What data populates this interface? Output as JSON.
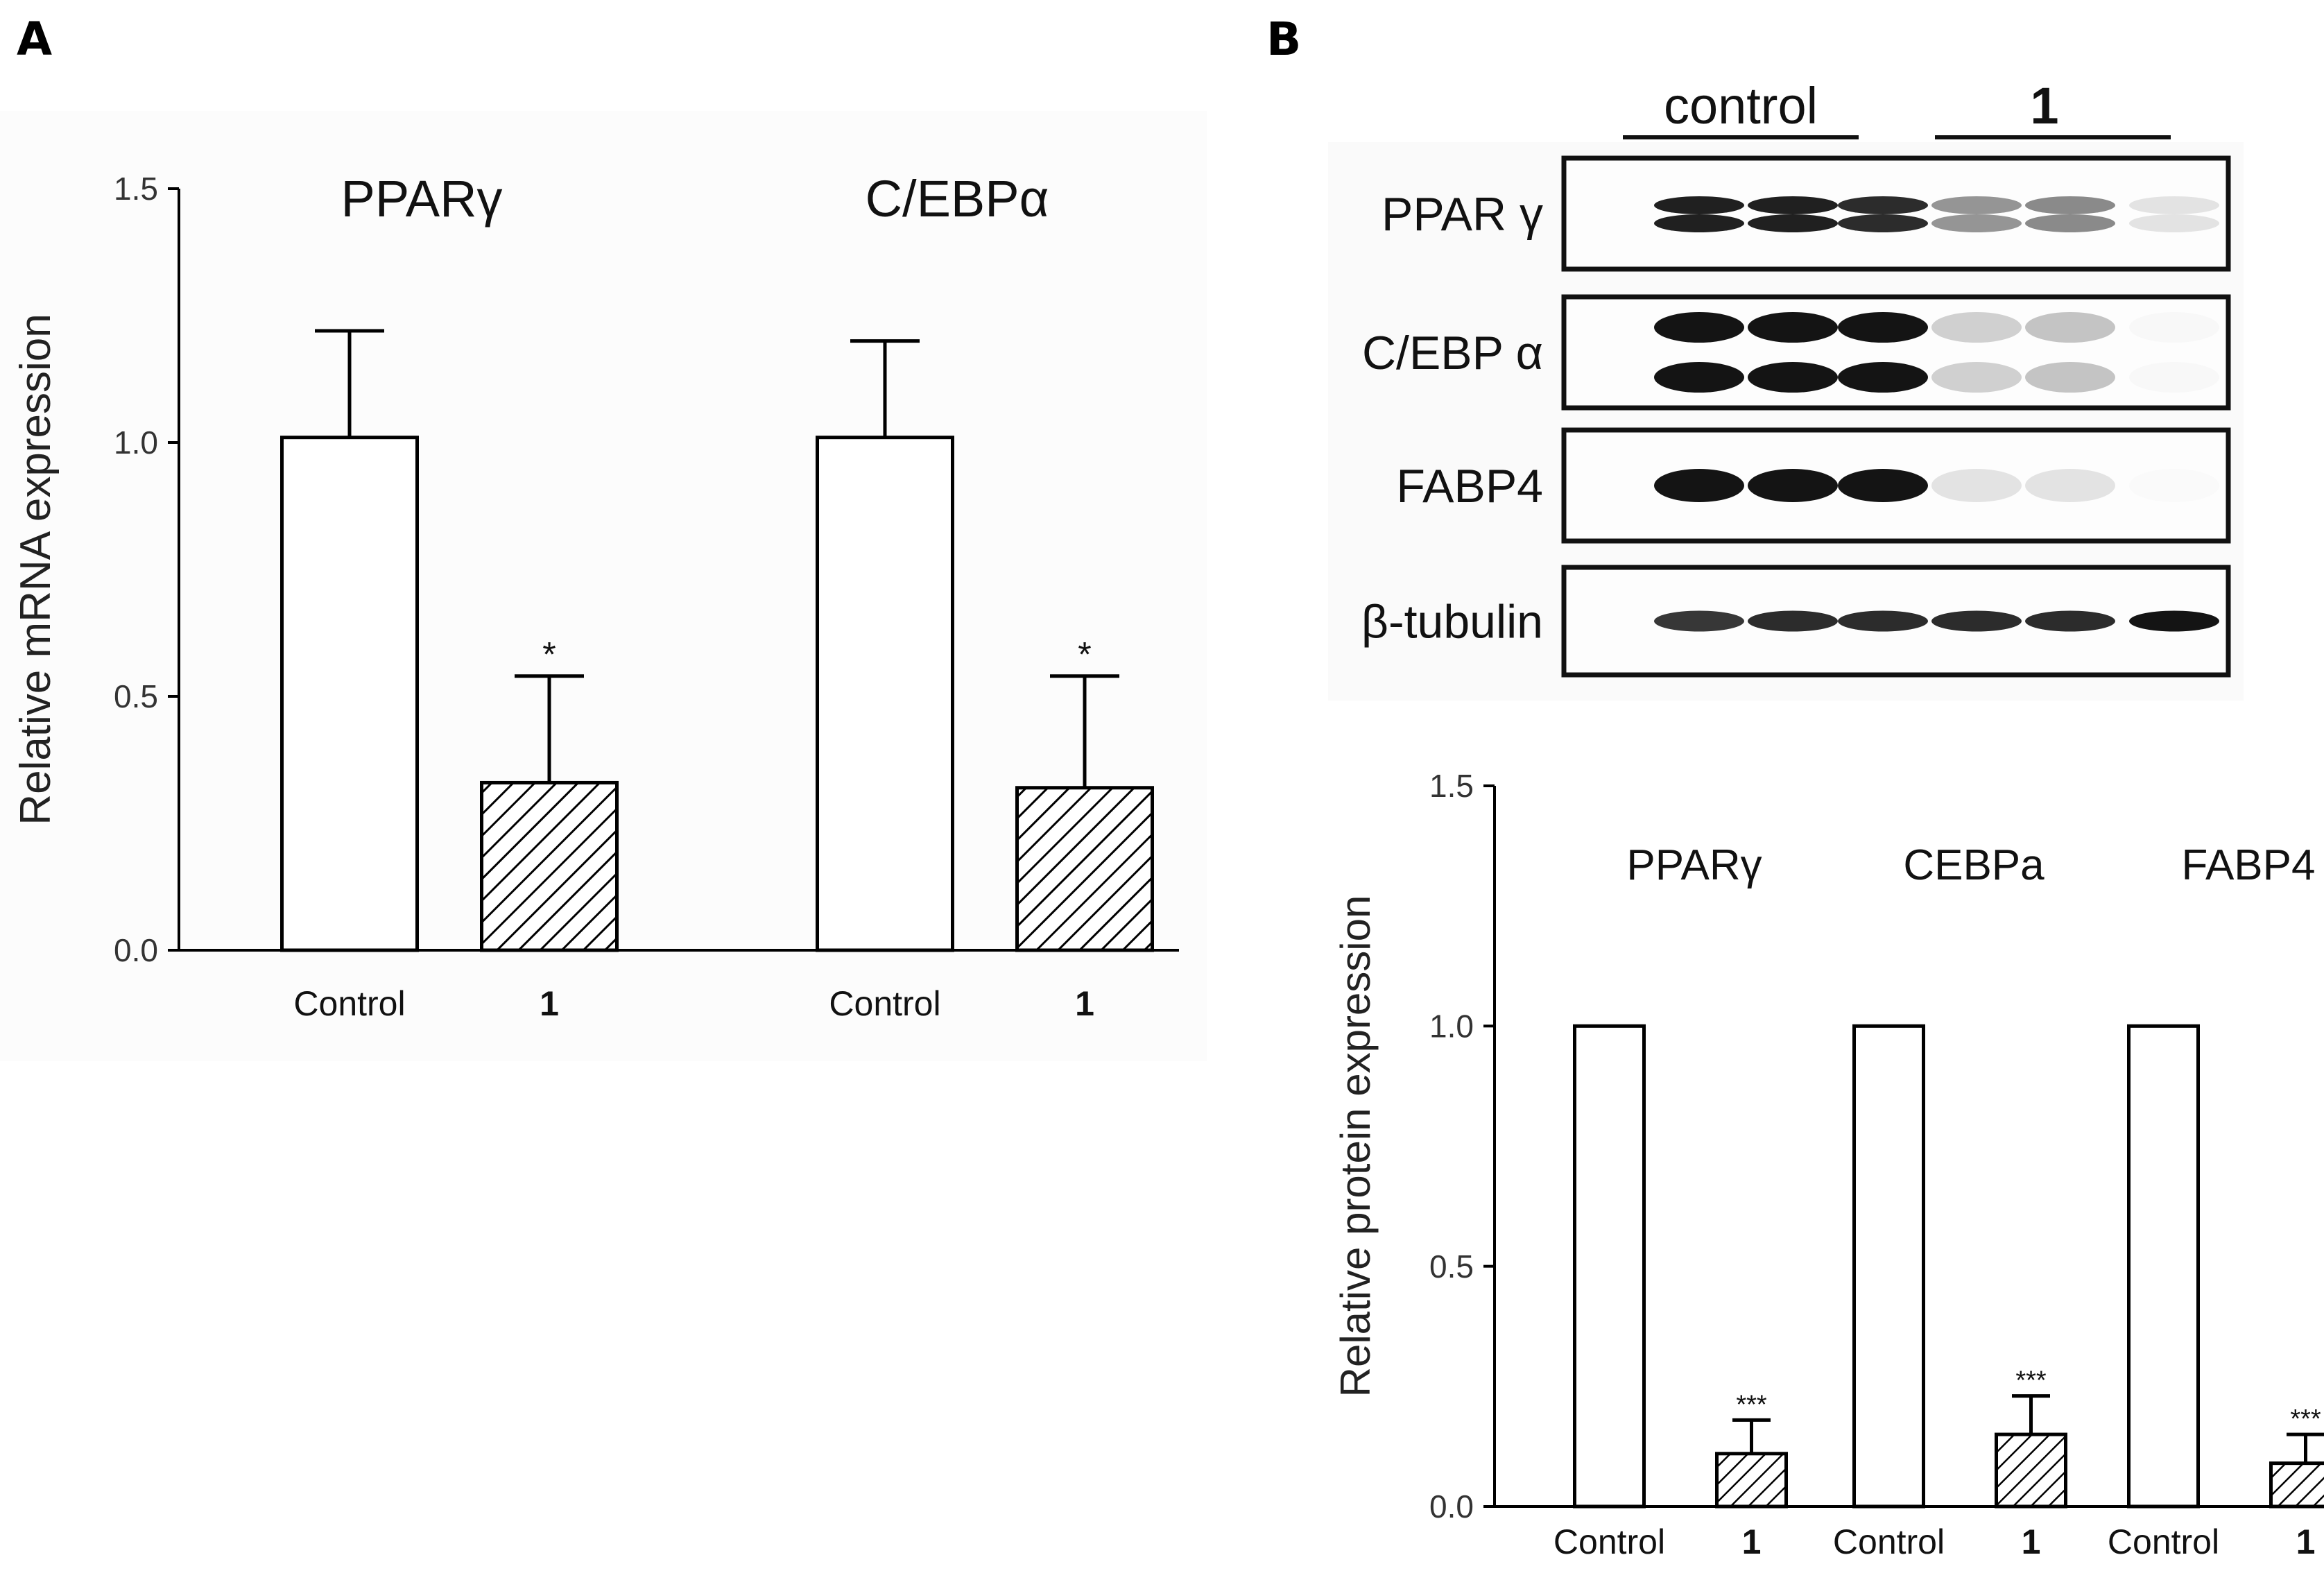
{
  "panels": {
    "a_label": "A",
    "b_label": "B"
  },
  "chart_data": [
    {
      "type": "bar",
      "panel": "A",
      "ylabel": "Relative mRNA expression",
      "ylim": [
        0,
        1.5
      ],
      "yticks": [
        "0.0",
        "0.5",
        "1.0",
        "1.5"
      ],
      "groups": [
        {
          "title": "PPARγ",
          "categories": [
            "Control",
            "1"
          ],
          "values": [
            1.01,
            0.33
          ],
          "errors": [
            0.21,
            0.21
          ],
          "significance": [
            "",
            "*"
          ]
        },
        {
          "title": "C/EBPα",
          "categories": [
            "Control",
            "1"
          ],
          "values": [
            1.01,
            0.32
          ],
          "errors": [
            0.19,
            0.22
          ],
          "significance": [
            "",
            "*"
          ]
        }
      ],
      "fills": [
        "white",
        "hatched"
      ]
    },
    {
      "type": "bar",
      "panel": "B",
      "ylabel": "Relative protein expression",
      "ylim": [
        0,
        1.5
      ],
      "yticks": [
        "0.0",
        "0.5",
        "1.0",
        "1.5"
      ],
      "groups": [
        {
          "title": "PPARγ",
          "categories": [
            "Control",
            "1"
          ],
          "values": [
            1.0,
            0.11
          ],
          "errors": [
            0.0,
            0.07
          ],
          "significance": [
            "",
            "***"
          ]
        },
        {
          "title": "CEBPa",
          "categories": [
            "Control",
            "1"
          ],
          "values": [
            1.0,
            0.15
          ],
          "errors": [
            0.0,
            0.08
          ],
          "significance": [
            "",
            "***"
          ]
        },
        {
          "title": "FABP4",
          "categories": [
            "Control",
            "1"
          ],
          "values": [
            1.0,
            0.09
          ],
          "errors": [
            0.0,
            0.06
          ],
          "significance": [
            "",
            "***"
          ]
        }
      ],
      "fills": [
        "white",
        "hatched"
      ]
    }
  ],
  "western_blot": {
    "group_labels": [
      "control",
      "1"
    ],
    "rows": [
      {
        "label": "PPAR γ",
        "intensities": [
          0.95,
          0.95,
          0.9,
          0.45,
          0.5,
          0.12
        ]
      },
      {
        "label": "C/EBP α",
        "intensities": [
          1.0,
          1.0,
          1.0,
          0.2,
          0.25,
          0.03
        ]
      },
      {
        "label": "FABP4",
        "intensities": [
          1.0,
          1.0,
          1.0,
          0.12,
          0.12,
          0.02
        ]
      },
      {
        "label": "β-tubulin",
        "intensities": [
          0.85,
          0.9,
          0.9,
          0.9,
          0.9,
          1.0
        ]
      }
    ]
  }
}
